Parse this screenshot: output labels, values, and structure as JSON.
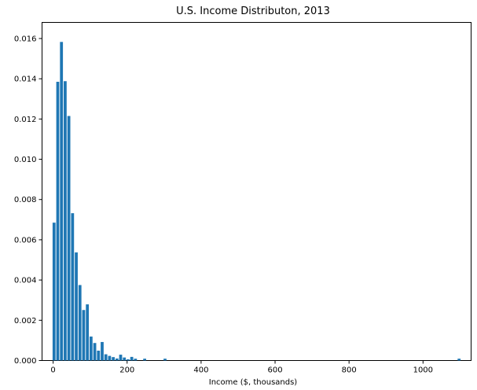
{
  "chart_data": {
    "type": "bar",
    "title": "U.S. Income Distributon, 2013",
    "xlabel": "Income ($, thousands)",
    "ylabel": "",
    "xlim": [
      -30,
      1130
    ],
    "ylim": [
      0,
      0.0168
    ],
    "xticks": [
      {
        "value": 0,
        "label": "0"
      },
      {
        "value": 200,
        "label": "200"
      },
      {
        "value": 400,
        "label": "400"
      },
      {
        "value": 600,
        "label": "600"
      },
      {
        "value": 800,
        "label": "800"
      },
      {
        "value": 1000,
        "label": "1000"
      }
    ],
    "yticks": [
      {
        "value": 0,
        "label": "0.000"
      },
      {
        "value": 0.002,
        "label": "0.002"
      },
      {
        "value": 0.004,
        "label": "0.004"
      },
      {
        "value": 0.006,
        "label": "0.006"
      },
      {
        "value": 0.008,
        "label": "0.008"
      },
      {
        "value": 0.01,
        "label": "0.010"
      },
      {
        "value": 0.012,
        "label": "0.012"
      },
      {
        "value": 0.014,
        "label": "0.014"
      },
      {
        "value": 0.016,
        "label": "0.016"
      }
    ],
    "bar_color": "#1f77b4",
    "bar_width": 8,
    "grid": false,
    "x": [
      2.5,
      12.5,
      22.5,
      32.5,
      42.5,
      52.5,
      62.5,
      72.5,
      82.5,
      92.5,
      102.5,
      112.5,
      122.5,
      132.5,
      142.5,
      152.5,
      162.5,
      172.5,
      182.5,
      192.5,
      202.5,
      212.5,
      222.5,
      247.5,
      302.5,
      1097.5
    ],
    "values": [
      0.00685,
      0.01385,
      0.01583,
      0.01388,
      0.01215,
      0.00732,
      0.00537,
      0.00375,
      0.00251,
      0.00279,
      0.00119,
      0.00087,
      0.00049,
      0.00092,
      0.00031,
      0.00023,
      0.00017,
      0.0001,
      0.00029,
      0.00015,
      6e-05,
      0.00018,
      9e-05,
      9e-05,
      9e-05,
      9e-05
    ]
  }
}
